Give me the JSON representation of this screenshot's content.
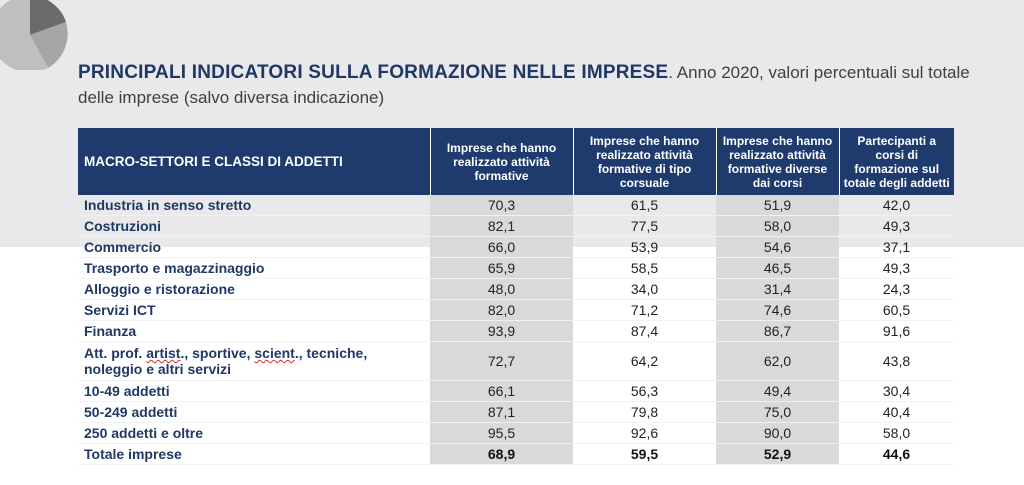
{
  "title": {
    "main": "PRINCIPALI INDICATORI SULLA FORMAZIONE NELLE IMPRESE",
    "rest": ". Anno 2020, valori percentuali sul totale delle imprese (salvo diversa indicazione)"
  },
  "colors": {
    "header_bg": "#1f3b6e",
    "title_blue": "#1f3864",
    "shaded_col": "#d9d9d9",
    "band": "#e9e9eb"
  },
  "logo": {
    "icon": "pie-chart-icon"
  },
  "table": {
    "headers": [
      "MACRO-SETTORI E CLASSI DI ADDETTI",
      "Imprese che hanno realizzato attività formative",
      "Imprese che hanno realizzato attività formative di tipo corsuale",
      "Imprese che hanno realizzato attività formative diverse dai corsi",
      "Partecipanti a corsi di formazione sul totale degli addetti"
    ],
    "rows": [
      {
        "label": "Industria in senso stretto",
        "values": [
          "70,3",
          "61,5",
          "51,9",
          "42,0"
        ]
      },
      {
        "label": "Costruzioni",
        "values": [
          "82,1",
          "77,5",
          "58,0",
          "49,3"
        ]
      },
      {
        "label": "Commercio",
        "values": [
          "66,0",
          "53,9",
          "54,6",
          "37,1"
        ]
      },
      {
        "label": "Trasporto e magazzinaggio",
        "values": [
          "65,9",
          "58,5",
          "46,5",
          "49,3"
        ]
      },
      {
        "label": "Alloggio e ristorazione",
        "values": [
          "48,0",
          "34,0",
          "31,4",
          "24,3"
        ]
      },
      {
        "label": "Servizi ICT",
        "values": [
          "82,0",
          "71,2",
          "74,6",
          "60,5"
        ]
      },
      {
        "label": "Finanza",
        "values": [
          "93,9",
          "87,4",
          "86,7",
          "91,6"
        ]
      },
      {
        "label_parts": [
          "Att. prof. ",
          "artist",
          "., sportive, ",
          "scient",
          "., tecniche, noleggio e altri servizi"
        ],
        "values": [
          "72,7",
          "64,2",
          "62,0",
          "43,8"
        ]
      },
      {
        "label": "10-49 addetti",
        "values": [
          "66,1",
          "56,3",
          "49,4",
          "30,4"
        ]
      },
      {
        "label": "50-249 addetti",
        "values": [
          "87,1",
          "79,8",
          "75,0",
          "40,4"
        ]
      },
      {
        "label": "250 addetti e oltre",
        "values": [
          "95,5",
          "92,6",
          "90,0",
          "58,0"
        ]
      },
      {
        "label": "Totale imprese",
        "values": [
          "68,9",
          "59,5",
          "52,9",
          "44,6"
        ]
      }
    ]
  }
}
